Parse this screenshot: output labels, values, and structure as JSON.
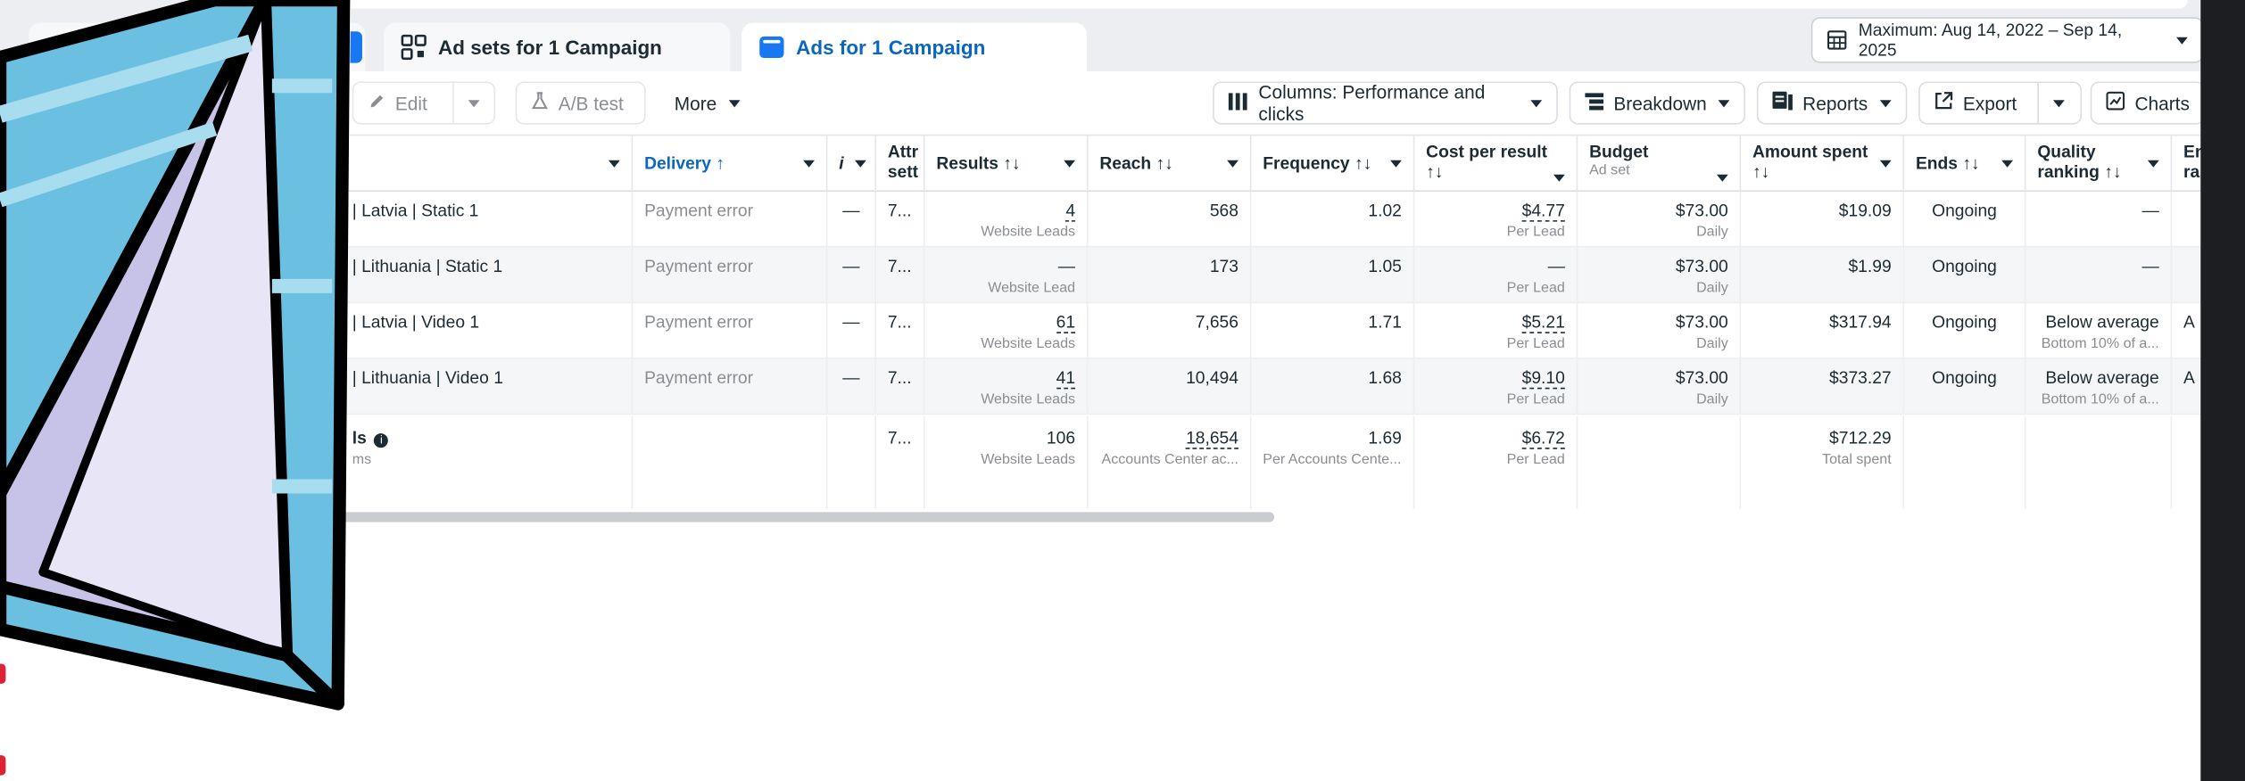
{
  "tabs": {
    "adsets_label": "Ad sets for 1 Campaign",
    "ads_label": "Ads for 1 Campaign",
    "close_symbol": "×"
  },
  "date_range": {
    "label": "Maximum: Aug 14, 2022 – Sep 14, 2025"
  },
  "toolbar": {
    "edit": "Edit",
    "ab_test": "A/B test",
    "more": "More",
    "columns": "Columns: Performance and clicks",
    "breakdown": "Breakdown",
    "reports": "Reports",
    "export": "Export",
    "charts": "Charts"
  },
  "headers": {
    "delivery": "Delivery ↑",
    "i": "i",
    "attr": "Attr sett",
    "results": "Results ↑↓",
    "reach": "Reach ↑↓",
    "frequency": "Frequency ↑↓",
    "cpr_1": "Cost per result",
    "cpr_2": "↑↓",
    "budget": "Budget",
    "budget_sub": "Ad set",
    "spent_1": "Amount spent",
    "spent_2": "↑↓",
    "ends": "Ends ↑↓",
    "quality_1": "Quality",
    "quality_2": "ranking ↑↓",
    "extra_1": "En",
    "extra_2": "ra"
  },
  "rows": [
    {
      "name": "| Latvia | Static 1",
      "delivery": "Payment error",
      "dash": "—",
      "attr": "7...",
      "results": "4",
      "results_sub": "Website Leads",
      "reach": "568",
      "frequency": "1.02",
      "cpr": "$4.77",
      "cpr_sub": "Per Lead",
      "budget": "$73.00",
      "budget_sub": "Daily",
      "spent": "$19.09",
      "ends": "Ongoing",
      "quality": "—",
      "quality_sub": "",
      "extra": ""
    },
    {
      "name": "| Lithuania | Static 1",
      "delivery": "Payment error",
      "dash": "—",
      "attr": "7...",
      "results": "—",
      "results_sub": "Website Lead",
      "reach": "173",
      "frequency": "1.05",
      "cpr": "—",
      "cpr_sub": "Per Lead",
      "budget": "$73.00",
      "budget_sub": "Daily",
      "spent": "$1.99",
      "ends": "Ongoing",
      "quality": "—",
      "quality_sub": "",
      "extra": ""
    },
    {
      "name": "| Latvia | Video 1",
      "delivery": "Payment error",
      "dash": "—",
      "attr": "7...",
      "results": "61",
      "results_sub": "Website Leads",
      "reach": "7,656",
      "frequency": "1.71",
      "cpr": "$5.21",
      "cpr_sub": "Per Lead",
      "budget": "$73.00",
      "budget_sub": "Daily",
      "spent": "$317.94",
      "ends": "Ongoing",
      "quality": "Below average",
      "quality_sub": "Bottom 10% of a...",
      "extra": "A"
    },
    {
      "name": "| Lithuania | Video 1",
      "delivery": "Payment error",
      "dash": "—",
      "attr": "7...",
      "results": "41",
      "results_sub": "Website Leads",
      "reach": "10,494",
      "frequency": "1.68",
      "cpr": "$9.10",
      "cpr_sub": "Per Lead",
      "budget": "$73.00",
      "budget_sub": "Daily",
      "spent": "$373.27",
      "ends": "Ongoing",
      "quality": "Below average",
      "quality_sub": "Bottom 10% of a...",
      "extra": "A"
    }
  ],
  "totals": {
    "name": "ls",
    "name_sub": "ms",
    "attr": "7...",
    "results": "106",
    "results_sub": "Website Leads",
    "reach": "18,654",
    "reach_sub": "Accounts Center ac...",
    "frequency": "1.69",
    "frequency_sub": "Per Accounts Cente...",
    "cpr": "$6.72",
    "cpr_sub": "Per Lead",
    "spent": "$712.29",
    "spent_sub": "Total spent"
  },
  "colors": {
    "accent": "#1877f2",
    "active_tab_text": "#0a66c2",
    "sticker_blue": "#6bbfe0"
  },
  "icons": [
    "close-icon",
    "adsets-icon",
    "ads-icon",
    "calendar-icon",
    "pencil-icon",
    "flask-icon",
    "columns-icon",
    "breakdown-icon",
    "reports-icon",
    "export-icon",
    "charts-icon",
    "info-icon",
    "paper-plane-sticker"
  ]
}
